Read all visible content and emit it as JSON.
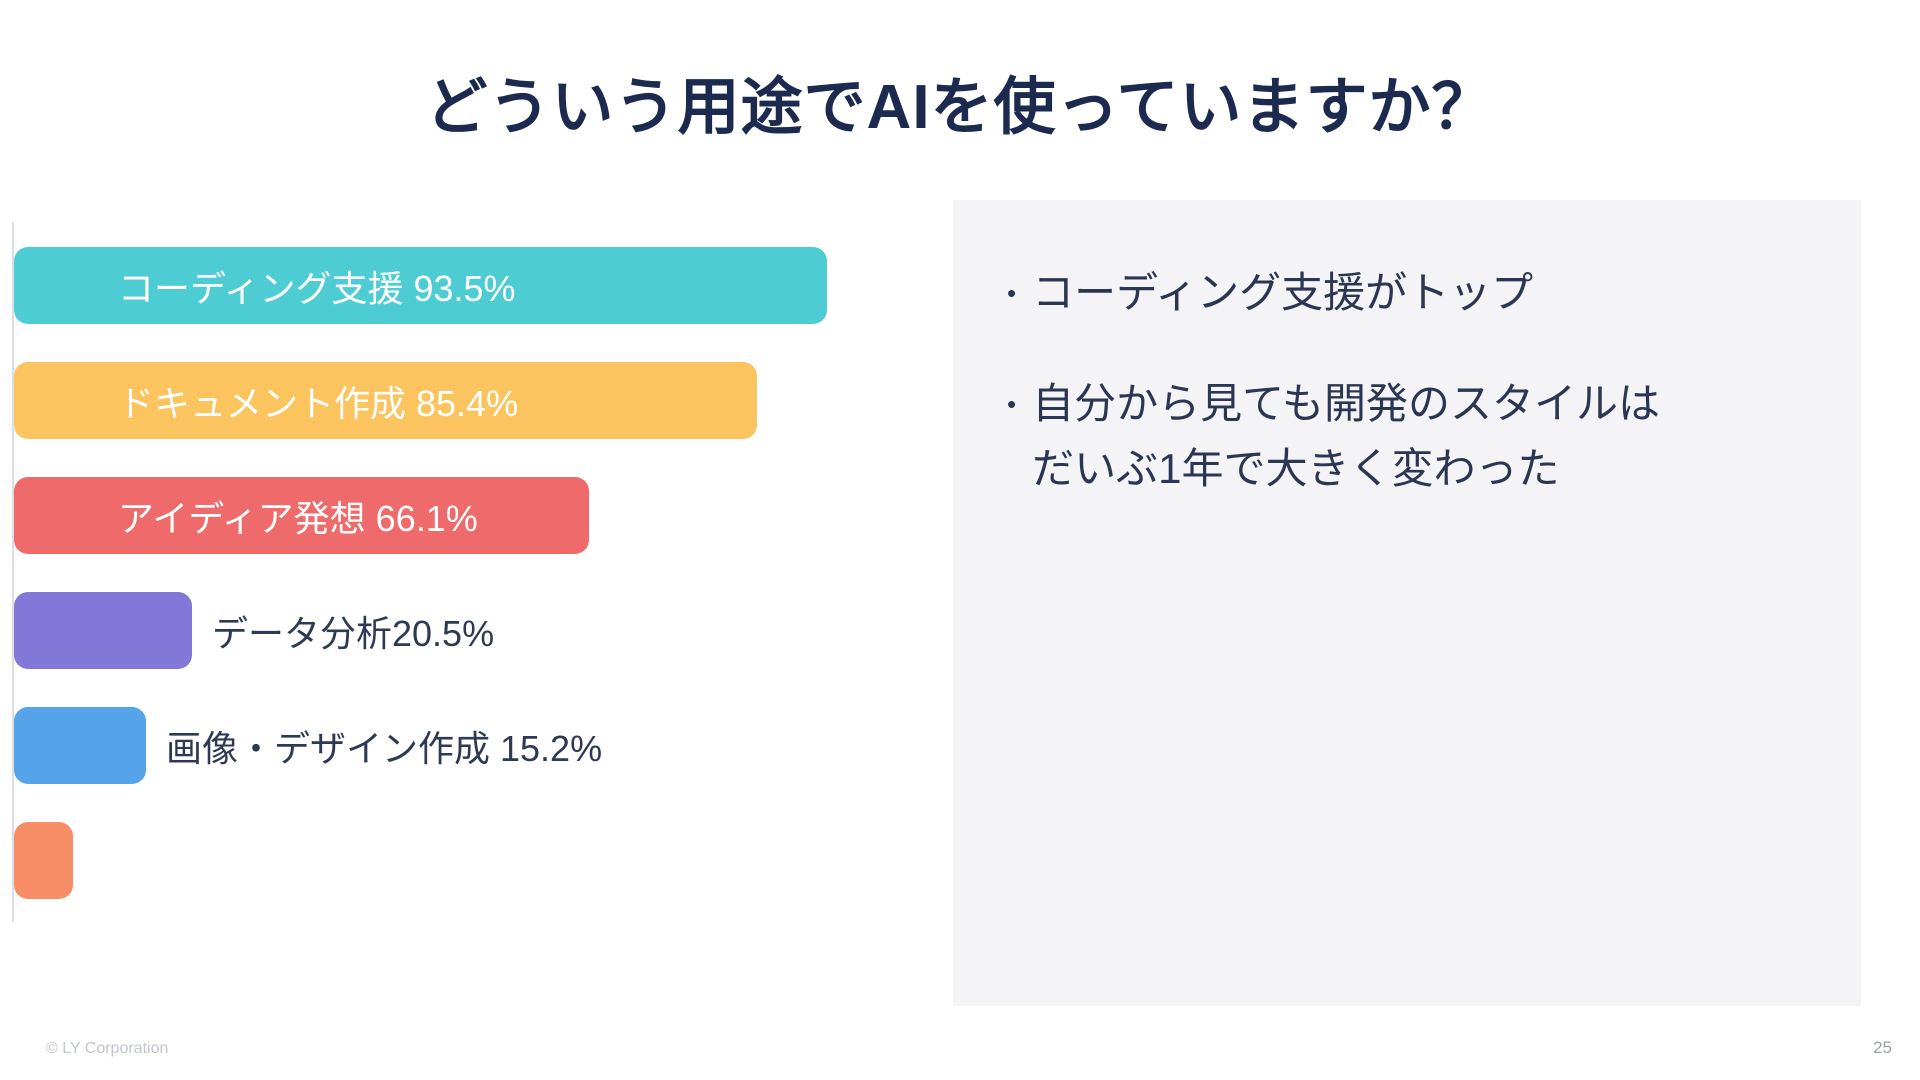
{
  "slide": {
    "title": "どういう用途でAIを使っていますか？",
    "footer": {
      "copyright": "© LY Corporation",
      "page_number": "25"
    }
  },
  "chart_data": {
    "type": "bar",
    "orientation": "horizontal",
    "title": "どういう用途でAIを使っていますか？",
    "categories": [
      "コーディング支援",
      "ドキュメント作成",
      "アイディア発想",
      "データ分析",
      "画像・デザイン作成",
      ""
    ],
    "values": [
      93.5,
      85.4,
      66.1,
      20.5,
      15.2,
      6.8
    ],
    "bar_labels": [
      "コーディング支援 93.5%",
      "ドキュメント作成 85.4%",
      "アイディア発想 66.1%",
      "データ分析20.5%",
      "画像・デザイン作成 15.2%",
      ""
    ],
    "labels_inside": [
      true,
      true,
      true,
      false,
      false,
      false
    ],
    "bar_colors": [
      "#4DCDD3",
      "#FBC45E",
      "#EF6A6A",
      "#8377D8",
      "#55A3E8",
      "#F88E66"
    ],
    "xlim": [
      0,
      100
    ],
    "grid": false,
    "legend": "none"
  },
  "notes_panel": {
    "bullets": [
      {
        "lines": [
          "コーディング支援がトップ"
        ]
      },
      {
        "lines": [
          "自分から見ても開発のスタイルは",
          "だいぶ1年で大きく変わった"
        ]
      }
    ]
  },
  "colors": {
    "background": "#FFFFFF",
    "title_text": "#1B2A4E",
    "body_text": "#2B3752",
    "panel_background": "#F4F4F6",
    "axis_line": "#DDDEE3",
    "footer_text": "#C1C5CD"
  }
}
